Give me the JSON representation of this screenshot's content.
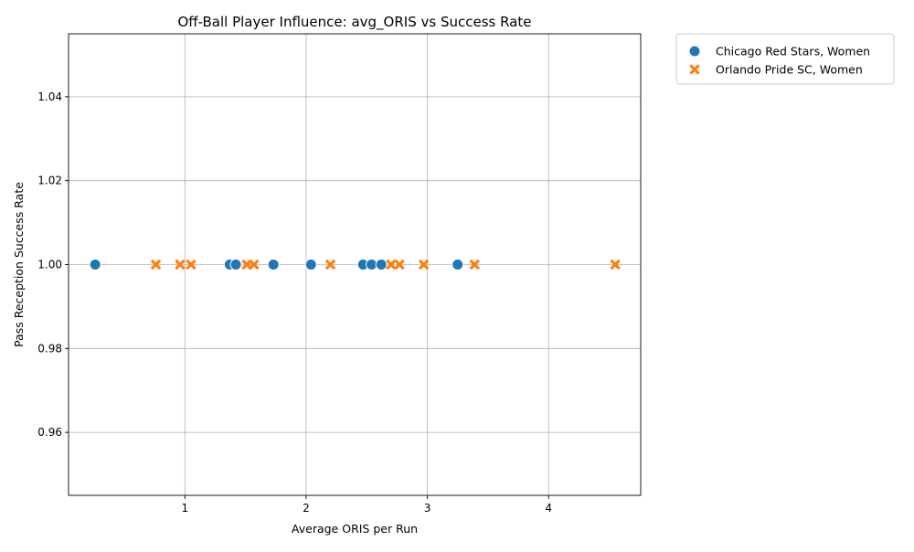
{
  "chart_data": {
    "type": "scatter",
    "title": "Off-Ball Player Influence: avg_ORIS vs Success Rate",
    "xlabel": "Average ORIS per Run",
    "ylabel": "Pass Reception Success Rate",
    "xlim": [
      0.04,
      4.76
    ],
    "ylim": [
      0.945,
      1.055
    ],
    "xticks": [
      "1",
      "2",
      "3",
      "4"
    ],
    "xtick_values": [
      1,
      2,
      3,
      4
    ],
    "yticks": [
      "0.96",
      "0.98",
      "1.00",
      "1.02",
      "1.04"
    ],
    "ytick_values": [
      0.96,
      0.98,
      1.0,
      1.02,
      1.04
    ],
    "grid": true,
    "legend_position": "outside-top-right",
    "series": [
      {
        "name": "Chicago Red Stars, Women",
        "marker": "circle",
        "color": "#1f77b4",
        "x": [
          0.26,
          1.37,
          1.42,
          1.73,
          2.04,
          2.47,
          2.54,
          2.62,
          3.25
        ],
        "y": [
          1.0,
          1.0,
          1.0,
          1.0,
          1.0,
          1.0,
          1.0,
          1.0,
          1.0
        ]
      },
      {
        "name": "Orlando Pride SC, Women",
        "marker": "x",
        "color": "#ff7f0e",
        "x": [
          0.76,
          0.96,
          1.05,
          1.51,
          1.57,
          2.2,
          2.7,
          2.77,
          2.97,
          3.39,
          4.55
        ],
        "y": [
          1.0,
          1.0,
          1.0,
          1.0,
          1.0,
          1.0,
          1.0,
          1.0,
          1.0,
          1.0,
          1.0
        ]
      }
    ]
  }
}
